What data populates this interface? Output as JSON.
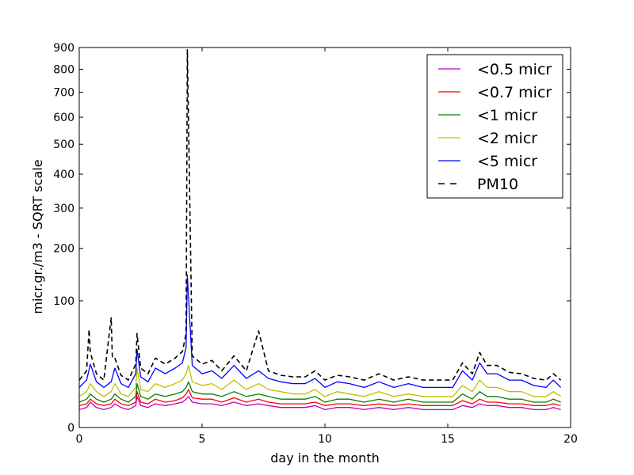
{
  "chart_data": {
    "type": "line",
    "title": "",
    "xlabel": "day in the month",
    "ylabel": "micr.gr./m3 - SQRT scale",
    "y_scale": "sqrt",
    "xlim": [
      0,
      20
    ],
    "ylim": [
      0,
      900
    ],
    "x_ticks": [
      0,
      5,
      10,
      15,
      20
    ],
    "y_ticks": [
      0,
      100,
      200,
      300,
      400,
      500,
      600,
      700,
      800,
      900
    ],
    "grid": false,
    "legend_position": "top-right",
    "series": [
      {
        "name": "<0.5 micr",
        "color": "#bf00bf",
        "style": "solid",
        "x": [
          0,
          0.3,
          0.45,
          0.7,
          1.0,
          1.3,
          1.45,
          1.7,
          2.0,
          2.3,
          2.35,
          2.5,
          2.8,
          3.1,
          3.5,
          3.9,
          4.2,
          4.35,
          4.45,
          4.6,
          5.0,
          5.4,
          5.8,
          6.3,
          6.8,
          7.3,
          7.7,
          8.2,
          8.7,
          9.2,
          9.6,
          10.0,
          10.5,
          11.0,
          11.6,
          12.2,
          12.8,
          13.4,
          14.0,
          14.6,
          15.2,
          15.6,
          16.0,
          16.3,
          16.6,
          17.0,
          17.5,
          18.0,
          18.5,
          19.0,
          19.3,
          19.6
        ],
        "values": [
          2,
          2.5,
          4,
          2.5,
          2,
          2.5,
          3.5,
          2.5,
          2,
          3,
          6,
          3,
          2.5,
          3.5,
          3,
          3.5,
          4,
          5,
          6,
          4,
          3.5,
          3.5,
          3,
          4,
          3,
          3.5,
          3,
          2.5,
          2.5,
          2.5,
          3,
          2,
          2.5,
          2.5,
          2,
          2.5,
          2,
          2.5,
          2,
          2,
          2,
          3,
          2.5,
          3.5,
          3,
          3,
          2.5,
          2.5,
          2,
          2,
          2.5,
          2
        ]
      },
      {
        "name": "<0.7 micr",
        "color": "#ff0000",
        "style": "solid",
        "x": [
          0,
          0.3,
          0.45,
          0.7,
          1.0,
          1.3,
          1.45,
          1.7,
          2.0,
          2.3,
          2.35,
          2.5,
          2.8,
          3.1,
          3.5,
          3.9,
          4.2,
          4.35,
          4.45,
          4.6,
          5.0,
          5.4,
          5.8,
          6.3,
          6.8,
          7.3,
          7.7,
          8.2,
          8.7,
          9.2,
          9.6,
          10.0,
          10.5,
          11.0,
          11.6,
          12.2,
          12.8,
          13.4,
          14.0,
          14.6,
          15.2,
          15.6,
          16.0,
          16.3,
          16.6,
          17.0,
          17.5,
          18.0,
          18.5,
          19.0,
          19.3,
          19.6
        ],
        "values": [
          3,
          3.5,
          5,
          3.5,
          3,
          3.5,
          5,
          3.5,
          3,
          4,
          8,
          4,
          3.5,
          5,
          4,
          4.5,
          5.5,
          7,
          9,
          5.5,
          5,
          5,
          4,
          5.5,
          4,
          5,
          4,
          3.5,
          3.5,
          3.5,
          4,
          3,
          3.5,
          3.5,
          3,
          3.5,
          3,
          3.5,
          3,
          3,
          3,
          4.5,
          3.5,
          5,
          4,
          4,
          3.5,
          3.5,
          3,
          3,
          3.5,
          3
        ]
      },
      {
        "name": "<1 micr",
        "color": "#008000",
        "style": "solid",
        "x": [
          0,
          0.3,
          0.45,
          0.7,
          1.0,
          1.3,
          1.45,
          1.7,
          2.0,
          2.3,
          2.35,
          2.5,
          2.8,
          3.1,
          3.5,
          3.9,
          4.2,
          4.35,
          4.45,
          4.6,
          5.0,
          5.4,
          5.8,
          6.3,
          6.8,
          7.3,
          7.7,
          8.2,
          8.7,
          9.2,
          9.6,
          10.0,
          10.5,
          11.0,
          11.6,
          12.2,
          12.8,
          13.4,
          14.0,
          14.6,
          15.2,
          15.6,
          16.0,
          16.3,
          16.6,
          17.0,
          17.5,
          18.0,
          18.5,
          19.0,
          19.3,
          19.6
        ],
        "values": [
          4,
          5,
          7,
          5,
          4,
          5,
          7,
          5,
          4,
          6,
          12,
          6,
          5,
          7,
          6,
          7,
          8,
          10,
          13,
          8,
          7,
          7,
          6,
          8,
          6,
          7,
          6,
          5,
          5,
          5,
          6,
          4,
          5,
          5,
          4,
          5,
          4,
          5,
          4,
          4,
          4,
          7,
          5,
          8,
          6,
          6,
          5,
          5,
          4,
          4,
          5,
          4
        ]
      },
      {
        "name": "<2 micr",
        "color": "#bfbf00",
        "style": "solid",
        "x": [
          0,
          0.3,
          0.45,
          0.7,
          1.0,
          1.3,
          1.45,
          1.7,
          2.0,
          2.3,
          2.35,
          2.5,
          2.8,
          3.1,
          3.5,
          3.9,
          4.2,
          4.35,
          4.45,
          4.6,
          5.0,
          5.4,
          5.8,
          6.3,
          6.8,
          7.3,
          7.7,
          8.2,
          8.7,
          9.2,
          9.6,
          10.0,
          10.5,
          11.0,
          11.6,
          12.2,
          12.8,
          13.4,
          14.0,
          14.6,
          15.2,
          15.6,
          16.0,
          16.3,
          16.6,
          17.0,
          17.5,
          18.0,
          18.5,
          19.0,
          19.3,
          19.6
        ],
        "values": [
          6,
          8,
          12,
          8,
          6,
          8,
          12,
          7,
          6,
          10,
          22,
          9,
          8,
          12,
          10,
          12,
          14,
          18,
          24,
          13,
          11,
          12,
          9,
          14,
          9,
          12,
          9,
          8,
          7,
          7,
          9,
          6,
          8,
          7,
          6,
          8,
          6,
          7,
          6,
          6,
          6,
          11,
          8,
          14,
          10,
          10,
          8,
          8,
          6,
          6,
          8,
          6
        ]
      },
      {
        "name": "<5 micr",
        "color": "#0000ff",
        "style": "solid",
        "x": [
          0,
          0.3,
          0.45,
          0.7,
          1.0,
          1.3,
          1.45,
          1.7,
          2.0,
          2.3,
          2.35,
          2.5,
          2.8,
          3.1,
          3.5,
          3.9,
          4.2,
          4.35,
          4.4,
          4.6,
          5.0,
          5.4,
          5.8,
          6.3,
          6.8,
          7.3,
          7.7,
          8.2,
          8.7,
          9.2,
          9.6,
          10.0,
          10.5,
          11.0,
          11.6,
          12.2,
          12.8,
          13.4,
          14.0,
          14.6,
          15.2,
          15.6,
          16.0,
          16.3,
          16.6,
          17.0,
          17.5,
          18.0,
          18.5,
          19.0,
          19.3,
          19.6
        ],
        "values": [
          10,
          14,
          25,
          13,
          10,
          13,
          22,
          12,
          10,
          18,
          38,
          16,
          13,
          22,
          18,
          22,
          26,
          40,
          145,
          24,
          18,
          20,
          15,
          24,
          15,
          20,
          15,
          13,
          12,
          12,
          15,
          10,
          13,
          12,
          10,
          13,
          10,
          12,
          10,
          10,
          10,
          20,
          14,
          26,
          18,
          18,
          14,
          14,
          11,
          10,
          14,
          10
        ]
      },
      {
        "name": "PM10",
        "color": "#000000",
        "style": "dashed",
        "x": [
          0,
          0.3,
          0.4,
          0.45,
          0.7,
          1.0,
          1.3,
          1.35,
          1.45,
          1.7,
          2.0,
          2.3,
          2.35,
          2.5,
          2.8,
          3.1,
          3.5,
          3.9,
          4.2,
          4.35,
          4.4,
          4.6,
          5.0,
          5.4,
          5.8,
          6.3,
          6.8,
          7.3,
          7.7,
          8.2,
          8.7,
          9.2,
          9.6,
          10.0,
          10.5,
          11.0,
          11.6,
          12.2,
          12.8,
          13.4,
          14.0,
          14.6,
          15.2,
          15.6,
          16.0,
          16.3,
          16.6,
          17.0,
          17.5,
          18.0,
          18.5,
          19.0,
          19.3,
          19.6
        ],
        "values": [
          14,
          20,
          60,
          35,
          18,
          14,
          75,
          30,
          30,
          17,
          14,
          25,
          55,
          22,
          18,
          30,
          25,
          30,
          36,
          55,
          890,
          32,
          25,
          28,
          20,
          32,
          20,
          58,
          20,
          17,
          16,
          16,
          20,
          14,
          17,
          16,
          14,
          18,
          14,
          16,
          14,
          14,
          14,
          26,
          18,
          35,
          24,
          24,
          19,
          18,
          15,
          14,
          18,
          14
        ]
      }
    ]
  }
}
